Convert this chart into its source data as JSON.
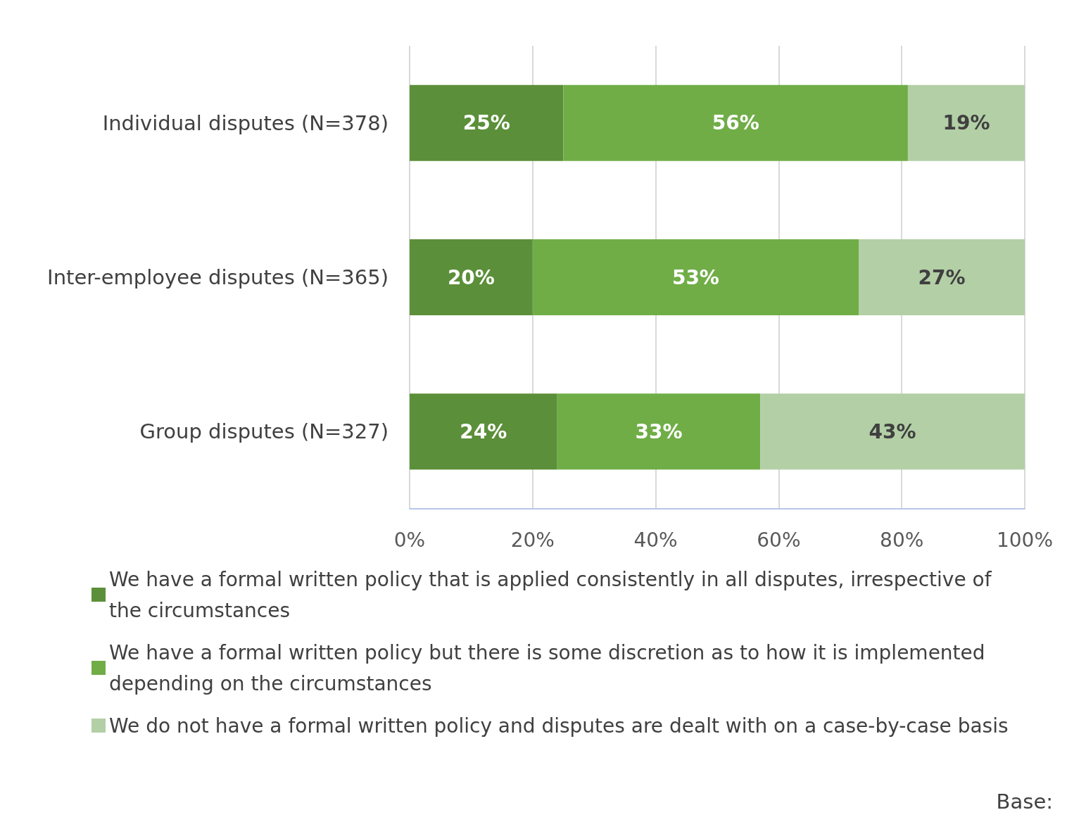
{
  "chart_data": {
    "type": "bar",
    "orientation": "horizontal",
    "stacked": true,
    "categories": [
      "Individual disputes (N=378)",
      "Inter-employee disputes (N=365)",
      "Group disputes (N=327)"
    ],
    "series": [
      {
        "name": "We have a formal written policy that is applied consistently in all disputes, irrespective of the circumstances",
        "color": "#5b8f39",
        "values": [
          25,
          20,
          24
        ],
        "value_labels": [
          "25%",
          "20%",
          "24%"
        ]
      },
      {
        "name": "We have a formal written policy but there is some discretion as to how it is implemented depending on the circumstances",
        "color": "#70ad47",
        "values": [
          56,
          53,
          33
        ],
        "value_labels": [
          "56%",
          "53%",
          "33%"
        ]
      },
      {
        "name": "We do not have a formal written policy and disputes are dealt with on a case-by-case basis",
        "color": "#b3cfa6",
        "values": [
          19,
          27,
          43
        ],
        "value_labels": [
          "19%",
          "27%",
          "43%"
        ]
      }
    ],
    "xlim": [
      0,
      100
    ],
    "xticks": [
      {
        "value": 0,
        "label": "0%"
      },
      {
        "value": 20,
        "label": "20%"
      },
      {
        "value": 40,
        "label": "40%"
      },
      {
        "value": 60,
        "label": "60%"
      },
      {
        "value": 80,
        "label": "80%"
      },
      {
        "value": 100,
        "label": "100%"
      }
    ],
    "grid": "x",
    "legend": "bottom",
    "annotations": [
      "Base:"
    ]
  }
}
